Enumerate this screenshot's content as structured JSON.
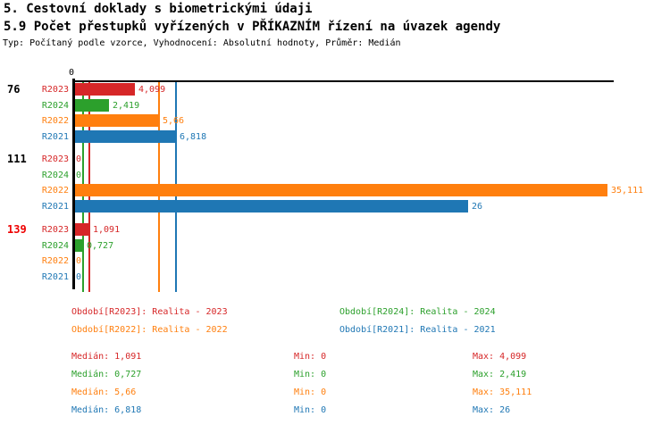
{
  "page": {
    "title_line1": "5. Cestovní doklady s biometrickými údaji",
    "title_line2": "5.9 Počet přestupků vyřízených v PŘÍKAZNÍM řízení na úvazek agendy",
    "subtitle": "Typ: Počítaný podle vzorce, Vyhodnocení: Absolutní hodnoty, Průměr: Medián"
  },
  "colors": {
    "R2023": "#d62728",
    "R2024": "#2ca02c",
    "R2022": "#ff7f0e",
    "R2021": "#1f77b4",
    "highlight_category": "#ee0000",
    "axis": "#000000"
  },
  "chart_data": {
    "type": "bar",
    "orientation": "horizontal",
    "title": "5.9 Počet přestupků vyřízených v PŘÍKAZNÍM řízení na úvazek agendy",
    "value_axis": {
      "zero_tick_label": "0",
      "min": 0,
      "max": 35.6,
      "grid": false
    },
    "categories": [
      "76",
      "111",
      "139"
    ],
    "category_label_colors": [
      "#000000",
      "#000000",
      "#ee0000"
    ],
    "series": [
      {
        "name": "R2023",
        "color": "#d62728",
        "values": [
          4.099,
          0,
          1.091
        ],
        "value_labels": [
          "4,099",
          "0",
          "1,091"
        ],
        "median": 1.091
      },
      {
        "name": "R2024",
        "color": "#2ca02c",
        "values": [
          2.419,
          0,
          0.727
        ],
        "value_labels": [
          "2,419",
          "0",
          "0,727"
        ],
        "median": 0.727
      },
      {
        "name": "R2022",
        "color": "#ff7f0e",
        "values": [
          5.66,
          35.111,
          0
        ],
        "value_labels": [
          "5,66",
          "35,111",
          "0"
        ],
        "median": 5.66
      },
      {
        "name": "R2021",
        "color": "#1f77b4",
        "values": [
          6.818,
          26,
          0
        ],
        "value_labels": [
          "6,818",
          "26",
          "0"
        ],
        "median": 6.818
      }
    ],
    "legend_position": "bottom"
  },
  "legend": {
    "items": [
      {
        "label": "Období[R2023]: Realita - 2023",
        "series": "R2023",
        "color": "#d62728"
      },
      {
        "label": "Období[R2024]: Realita - 2024",
        "series": "R2024",
        "color": "#2ca02c"
      },
      {
        "label": "Období[R2022]: Realita - 2022",
        "series": "R2022",
        "color": "#ff7f0e"
      },
      {
        "label": "Období[R2021]: Realita - 2021",
        "series": "R2021",
        "color": "#1f77b4"
      }
    ]
  },
  "stats": {
    "rows": [
      {
        "series": "R2023",
        "color": "#d62728",
        "median_label": "Medián: 1,091",
        "min_label": "Min: 0",
        "max_label": "Max: 4,099"
      },
      {
        "series": "R2024",
        "color": "#2ca02c",
        "median_label": "Medián: 0,727",
        "min_label": "Min: 0",
        "max_label": "Max: 2,419"
      },
      {
        "series": "R2022",
        "color": "#ff7f0e",
        "median_label": "Medián: 5,66",
        "min_label": "Min: 0",
        "max_label": "Max: 35,111"
      },
      {
        "series": "R2021",
        "color": "#1f77b4",
        "median_label": "Medián: 6,818",
        "min_label": "Min: 0",
        "max_label": "Max: 26"
      }
    ]
  }
}
